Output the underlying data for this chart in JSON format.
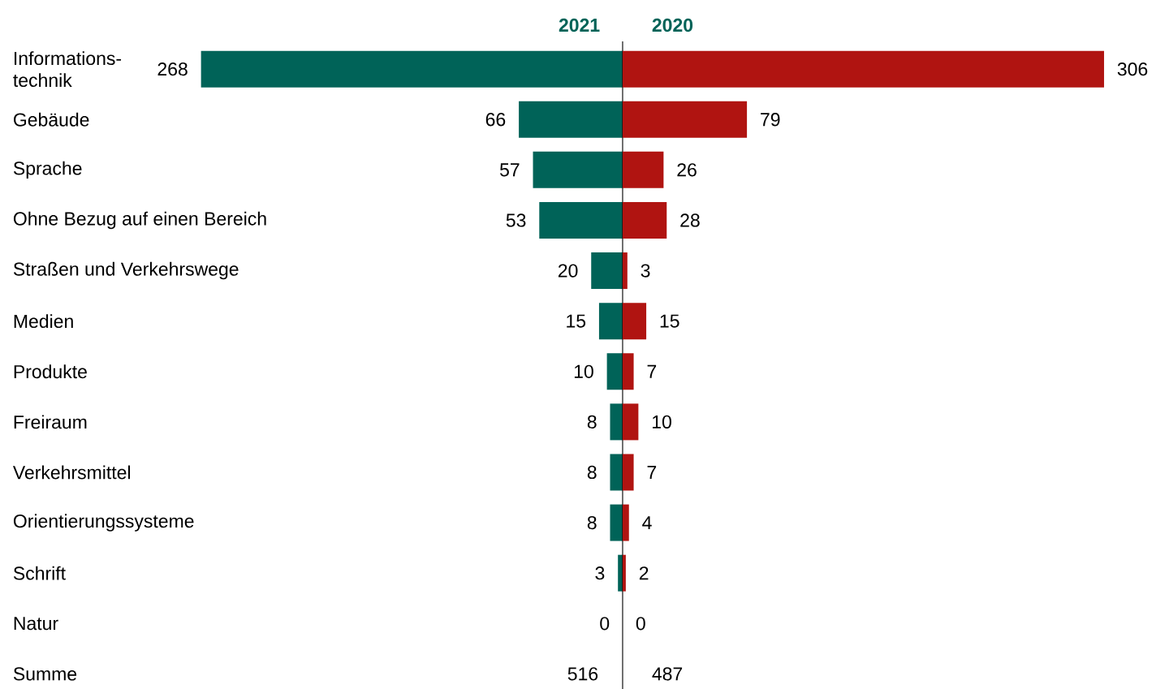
{
  "chart_data": [
    {
      "type": "bar",
      "orientation": "horizontal",
      "title": "2021",
      "tick_labels": "y",
      "categories": [
        "Informations-technik",
        "Gebäude",
        "Sprache",
        "Ohne Bezug auf einen Bereich",
        "Straßen und Verkehrswege",
        "Medien",
        "Produkte",
        "Freiraum",
        "Verkehrsmittel",
        "Orientierungssysteme",
        "Schrift",
        "Natur",
        "Summe"
      ],
      "series": [
        {
          "color": "#006358",
          "values": [
            268,
            66,
            57,
            53,
            20,
            15,
            10,
            8,
            8,
            8,
            3,
            0,
            null
          ],
          "value_labels": [
            "268",
            "66",
            "57",
            "53",
            "20",
            "15",
            "10",
            "8",
            "8",
            "8",
            "3",
            "0",
            "516"
          ]
        }
      ]
    },
    {
      "type": "bar",
      "orientation": "horizontal",
      "title": "2020",
      "tick_labels": false,
      "series": [
        {
          "color": "#b01411",
          "values": [
            306,
            79,
            26,
            28,
            3,
            15,
            7,
            10,
            7,
            4,
            2,
            0,
            null
          ],
          "value_labels": [
            "306",
            "79",
            "26",
            "28",
            "3",
            "15",
            "7",
            "10",
            "7",
            "4",
            "2",
            "0",
            "487"
          ]
        }
      ]
    }
  ]
}
